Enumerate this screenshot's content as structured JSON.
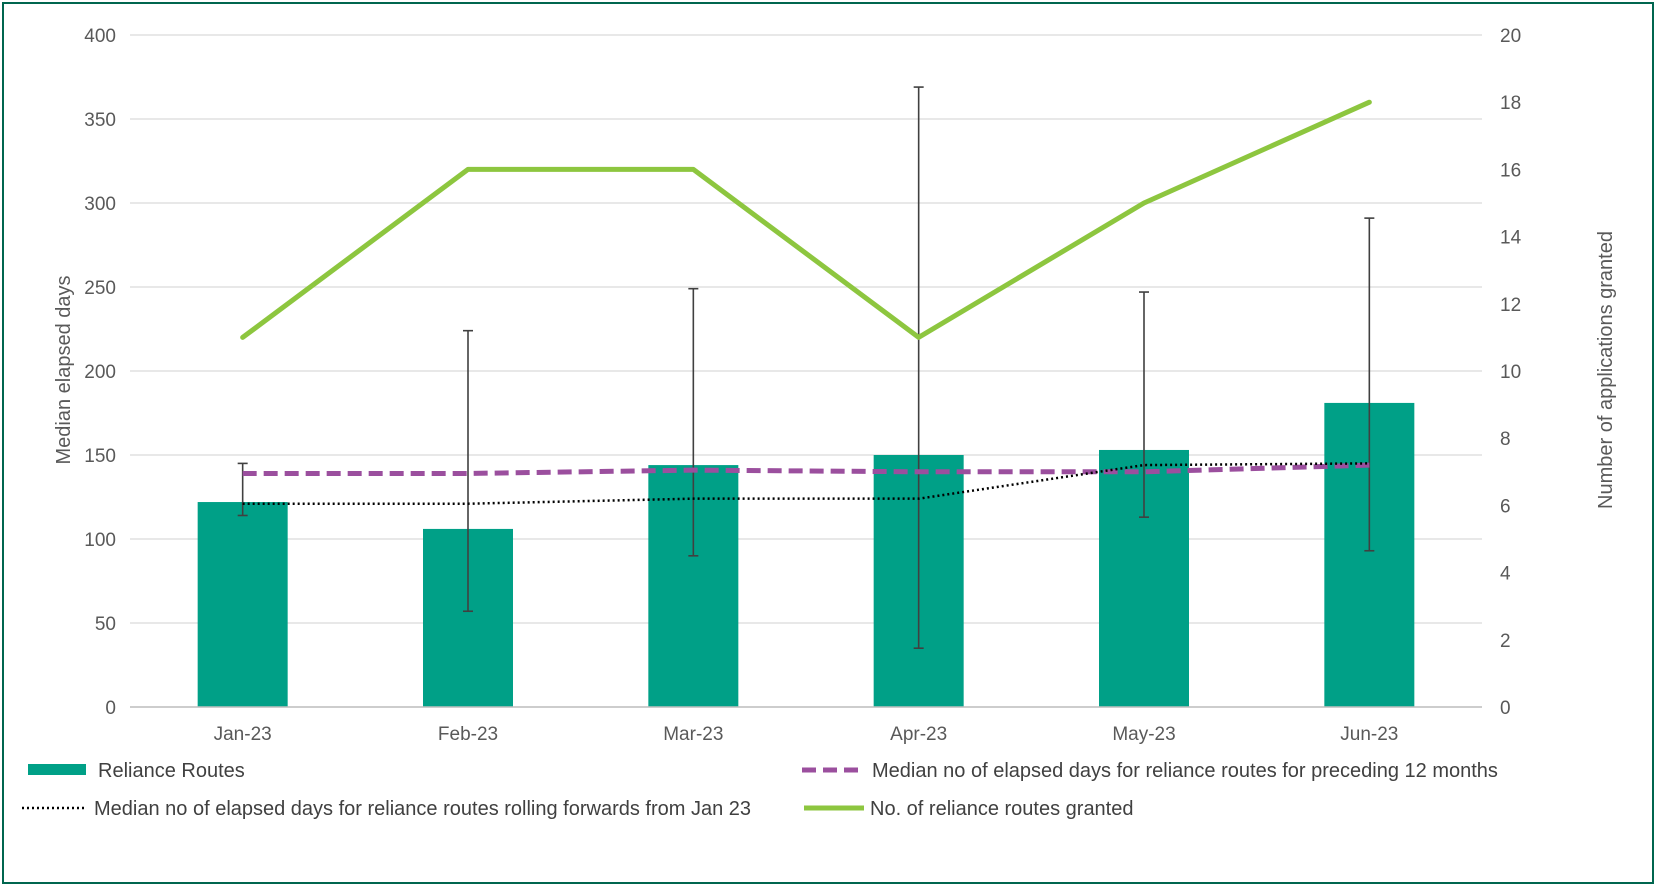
{
  "chart_data": {
    "type": "bar",
    "title": "",
    "categories": [
      "Jan-23",
      "Feb-23",
      "Mar-23",
      "Apr-23",
      "May-23",
      "Jun-23"
    ],
    "y_left": {
      "label": "Median elapsed days",
      "lim": [
        0,
        400
      ],
      "ticks": [
        0,
        50,
        100,
        150,
        200,
        250,
        300,
        350,
        400
      ]
    },
    "y_right": {
      "label": "Number  of applications granted",
      "lim": [
        0,
        20
      ],
      "ticks": [
        0,
        2,
        4,
        6,
        8,
        10,
        12,
        14,
        16,
        18,
        20
      ]
    },
    "grid": true,
    "legend_position": "bottom",
    "series": [
      {
        "name": "Reliance Routes",
        "type": "bar",
        "axis": "left",
        "color": "#00a087",
        "values": [
          122,
          106,
          144,
          150,
          153,
          181
        ],
        "error_low": [
          114,
          57,
          90,
          35,
          113,
          93
        ],
        "error_high": [
          145,
          224,
          249,
          369,
          247,
          291
        ]
      },
      {
        "name": "Median no of elapsed days for reliance routes for preceding 12 months",
        "type": "line",
        "style": "dashed",
        "axis": "left",
        "color": "#9b4f9e",
        "values": [
          139,
          139,
          141,
          140,
          140,
          144
        ]
      },
      {
        "name": "Median no of elapsed days for reliance routes rolling forwards from Jan 23",
        "type": "line",
        "style": "dotted",
        "axis": "left",
        "color": "#000000",
        "values": [
          121,
          121,
          124,
          124,
          144,
          145
        ]
      },
      {
        "name": "No. of reliance routes granted",
        "type": "line",
        "style": "solid",
        "axis": "right",
        "color": "#8dc63f",
        "values": [
          11,
          16,
          16,
          11,
          15,
          18
        ]
      }
    ]
  }
}
